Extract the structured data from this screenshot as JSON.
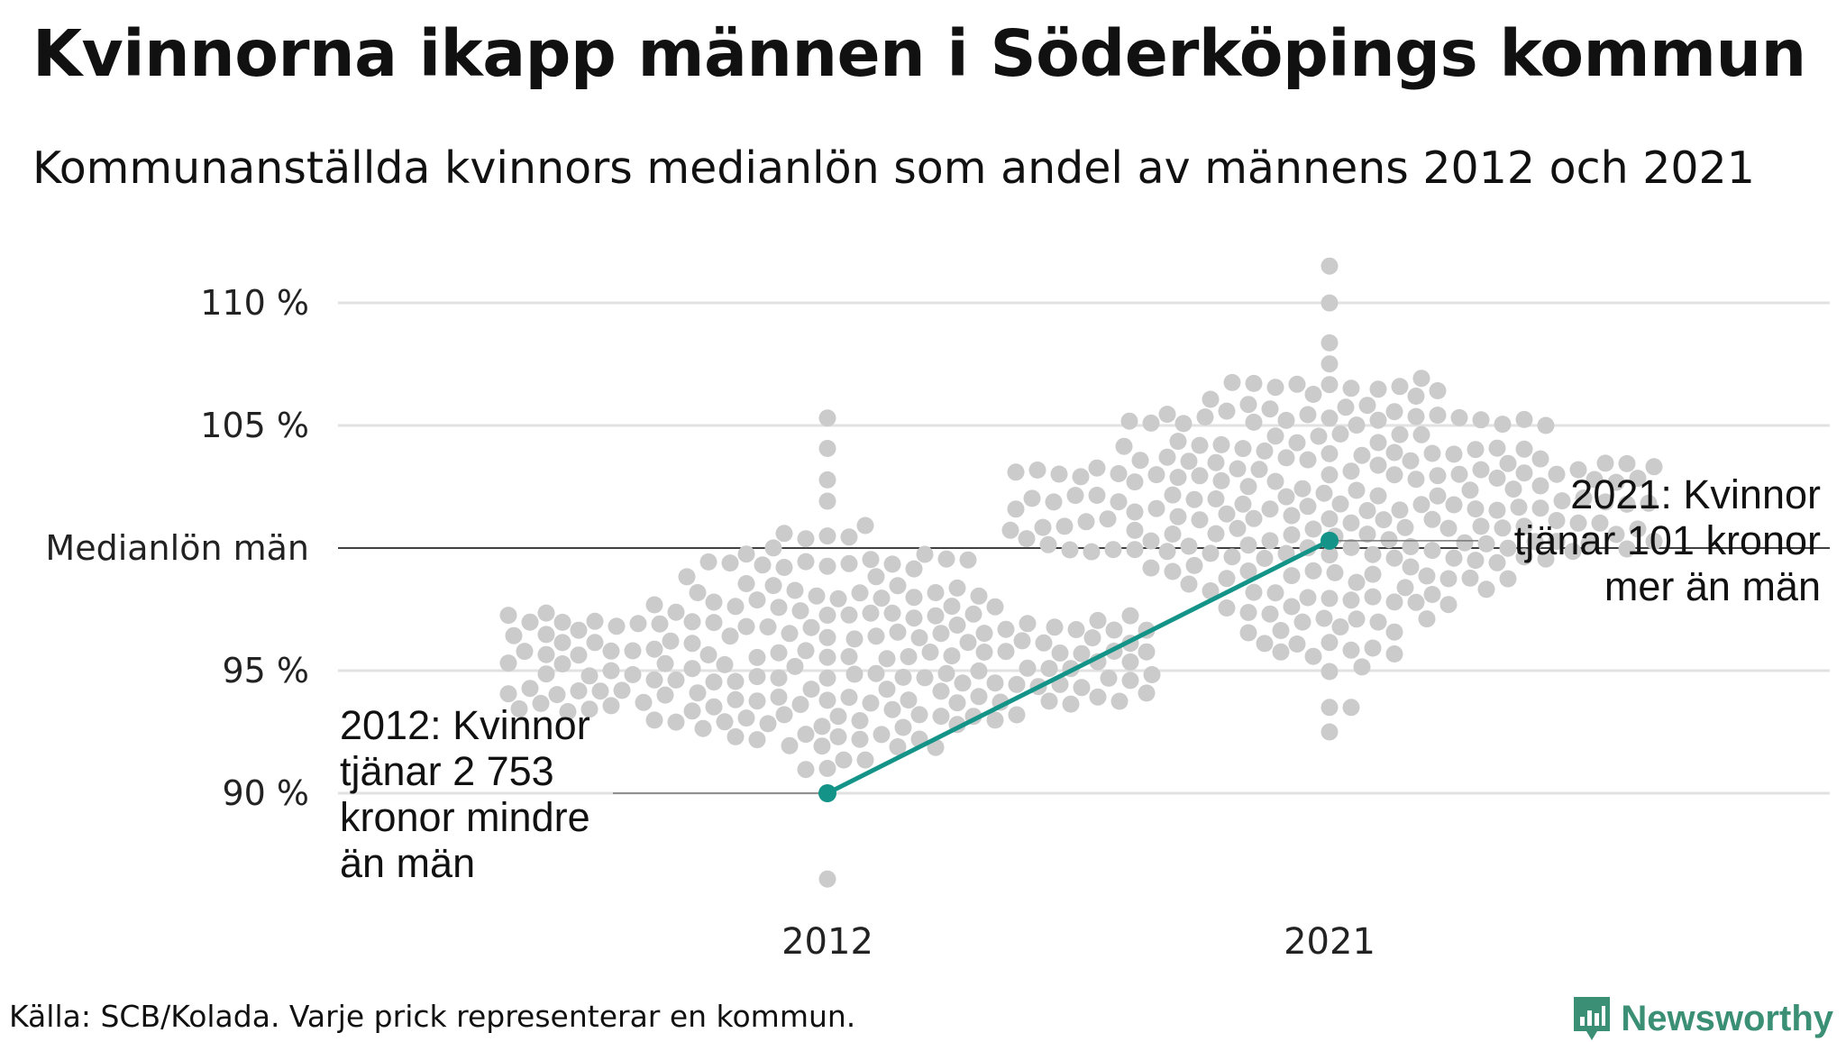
{
  "title": "Kvinnorna ikapp männen i Söderköpings kommun",
  "subtitle": "Kommunanställda kvinnors medianlön som andel av männens 2012 och 2021",
  "source": "Källa: SCB/Kolada. Varje prick representerar en kommun.",
  "brand": {
    "name": "Newsworthy",
    "icon": "newsworthy-logo-icon",
    "color": "#3a8f74"
  },
  "colors": {
    "highlight": "#149488",
    "dots": "#cbcbcb",
    "grid": "#e2e2e2",
    "baseline": "#000000"
  },
  "chart_data": {
    "type": "scatter",
    "ylim": [
      86,
      112
    ],
    "grid": true,
    "y_ticks": [
      {
        "value": 110,
        "label": "110 %"
      },
      {
        "value": 105,
        "label": "105 %"
      },
      {
        "value": 100,
        "label": "Medianlön män"
      },
      {
        "value": 95,
        "label": "95 %"
      },
      {
        "value": 90,
        "label": "90 %"
      }
    ],
    "categories": [
      "2012",
      "2021"
    ],
    "highlight": {
      "values": [
        90.0,
        100.3
      ]
    },
    "distributions": [
      {
        "category": "2012",
        "median": 95.5,
        "sd": 2.2,
        "min": 86.5,
        "max": 105.3
      },
      {
        "category": "2021",
        "median": 102.0,
        "sd": 2.6,
        "min": 92.5,
        "max": 111.5
      }
    ],
    "annotations": [
      {
        "lines": [
          "2021: Kvinnor",
          "tjänar 101 kronor",
          "mer än män"
        ]
      },
      {
        "lines": [
          "2012: Kvinnor",
          "tjänar 2 753",
          "kronor mindre",
          "än män"
        ]
      }
    ]
  }
}
